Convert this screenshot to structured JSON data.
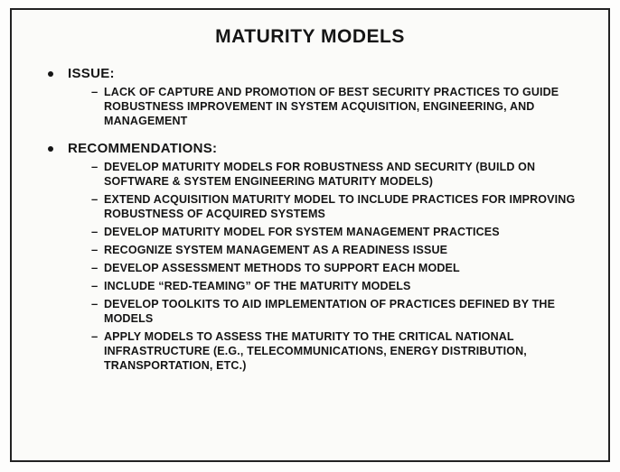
{
  "title": "MATURITY MODELS",
  "sections": [
    {
      "label": "ISSUE:",
      "items": [
        "LACK OF CAPTURE AND PROMOTION OF BEST SECURITY PRACTICES TO GUIDE ROBUSTNESS IMPROVEMENT IN SYSTEM ACQUISITION, ENGINEERING, AND MANAGEMENT"
      ]
    },
    {
      "label": "RECOMMENDATIONS:",
      "items": [
        "DEVELOP MATURITY MODELS  FOR ROBUSTNESS AND SECURITY (BUILD ON SOFTWARE & SYSTEM ENGINEERING MATURITY MODELS)",
        "EXTEND ACQUISITION MATURITY MODEL TO INCLUDE PRACTICES FOR IMPROVING ROBUSTNESS OF ACQUIRED SYSTEMS",
        "DEVELOP MATURITY MODEL FOR SYSTEM MANAGEMENT PRACTICES",
        "RECOGNIZE SYSTEM MANAGEMENT AS A READINESS ISSUE",
        "DEVELOP ASSESSMENT METHODS TO SUPPORT EACH MODEL",
        "INCLUDE “RED-TEAMING” OF THE MATURITY MODELS",
        "DEVELOP TOOLKITS TO AID IMPLEMENTATION OF PRACTICES DEFINED BY THE MODELS",
        "APPLY MODELS TO ASSESS THE MATURITY TO THE CRITICAL NATIONAL INFRASTRUCTURE (E.G., TELECOMMUNICATIONS, ENERGY DISTRIBUTION, TRANSPORTATION, ETC.)"
      ]
    }
  ]
}
